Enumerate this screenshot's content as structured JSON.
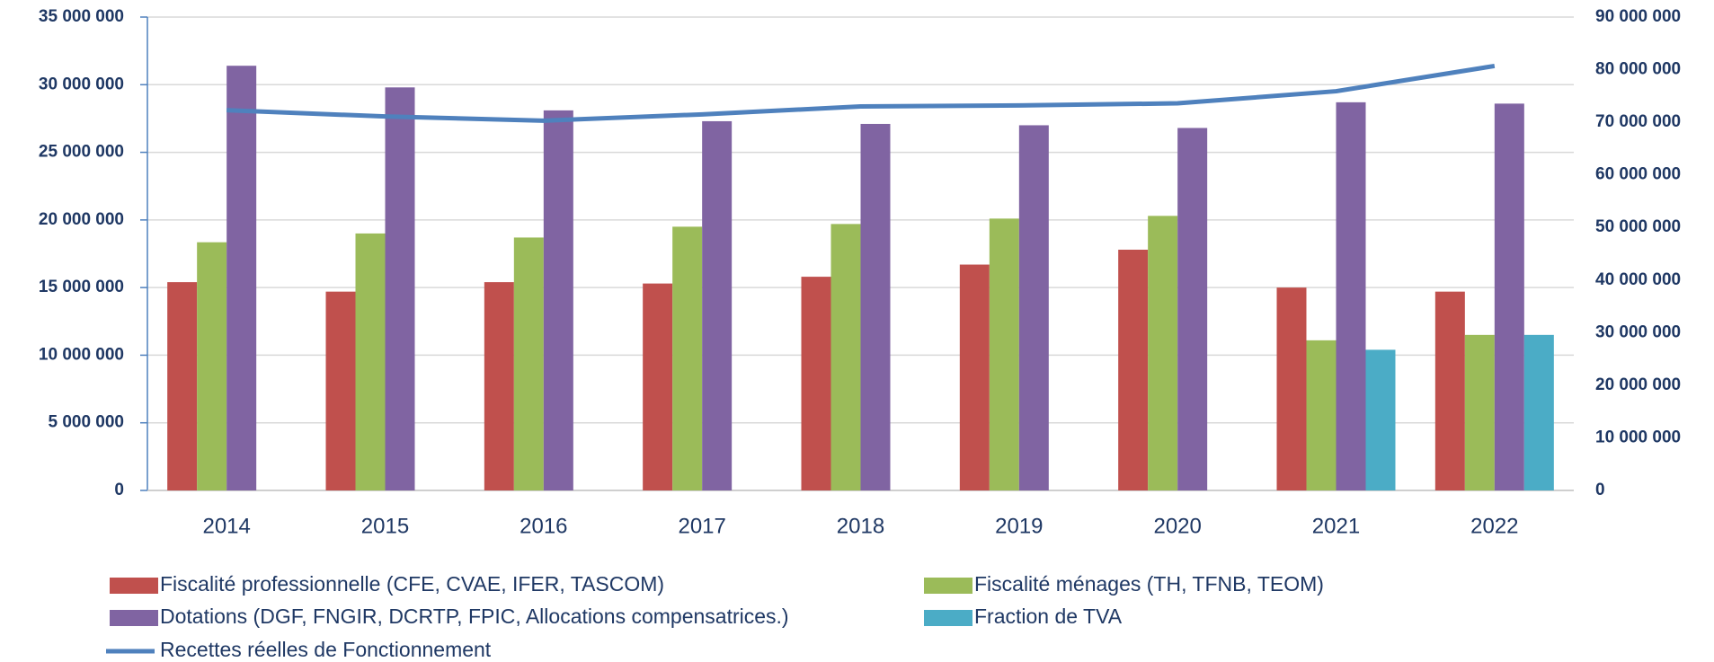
{
  "chart_data": {
    "type": "bar",
    "categories": [
      "2014",
      "2015",
      "2016",
      "2017",
      "2018",
      "2019",
      "2020",
      "2021",
      "2022"
    ],
    "series": [
      {
        "name": "Fiscalité professionnelle (CFE, CVAE, IFER, TASCOM)",
        "color": "#c0504d",
        "values": [
          15400000,
          14700000,
          15400000,
          15300000,
          15800000,
          16700000,
          17800000,
          15000000,
          14700000
        ]
      },
      {
        "name": "Fiscalité ménages (TH, TFNB, TEOM)",
        "color": "#9bbb59",
        "values": [
          18350000,
          19000000,
          18700000,
          19500000,
          19700000,
          20100000,
          20300000,
          11100000,
          11500000
        ]
      },
      {
        "name": "Dotations (DGF, FNGIR, DCRTP, FPIC, Allocations compensatrices.)",
        "color": "#8064a2",
        "values": [
          31400000,
          29800000,
          28100000,
          27300000,
          27100000,
          27000000,
          26800000,
          28700000,
          28600000
        ]
      },
      {
        "name": "Fraction de TVA",
        "color": "#4bacc6",
        "values": [
          null,
          null,
          null,
          null,
          null,
          null,
          null,
          10400000,
          11500000
        ]
      },
      {
        "name": "Recettes réelles de Fonctionnement",
        "color": "#4f81bd",
        "type": "line",
        "axis": "y2",
        "values": [
          72300000,
          71100000,
          70300000,
          71500000,
          73000000,
          73200000,
          73600000,
          75900000,
          80700000
        ]
      }
    ],
    "ylim": [
      0,
      35000000
    ],
    "yticks": [
      0,
      {
        "value": 5000000,
        "label": "5 000 000"
      },
      {
        "value": 10000000,
        "label": "10 000 000"
      },
      {
        "value": 15000000,
        "label": "15 000 000"
      },
      {
        "value": 20000000,
        "label": "20 000 000"
      },
      {
        "value": 25000000,
        "label": "25 000 000"
      },
      {
        "value": 30000000,
        "label": "30 000 000"
      },
      {
        "value": 35000000,
        "label": "35 000 000"
      }
    ],
    "y2lim": [
      0,
      90000000
    ],
    "y2ticks": [
      0,
      {
        "value": 10000000,
        "label": "10 000 000"
      },
      {
        "value": 20000000,
        "label": "20 000 000"
      },
      {
        "value": 30000000,
        "label": "30 000 000"
      },
      {
        "value": 40000000,
        "label": "40 000 000"
      },
      {
        "value": 50000000,
        "label": "50 000 000"
      },
      {
        "value": 60000000,
        "label": "60 000 000"
      },
      {
        "value": 70000000,
        "label": "70 000 000"
      },
      {
        "value": 80000000,
        "label": "80 000 000"
      },
      {
        "value": 90000000,
        "label": "90 000 000"
      }
    ],
    "grid": true
  }
}
